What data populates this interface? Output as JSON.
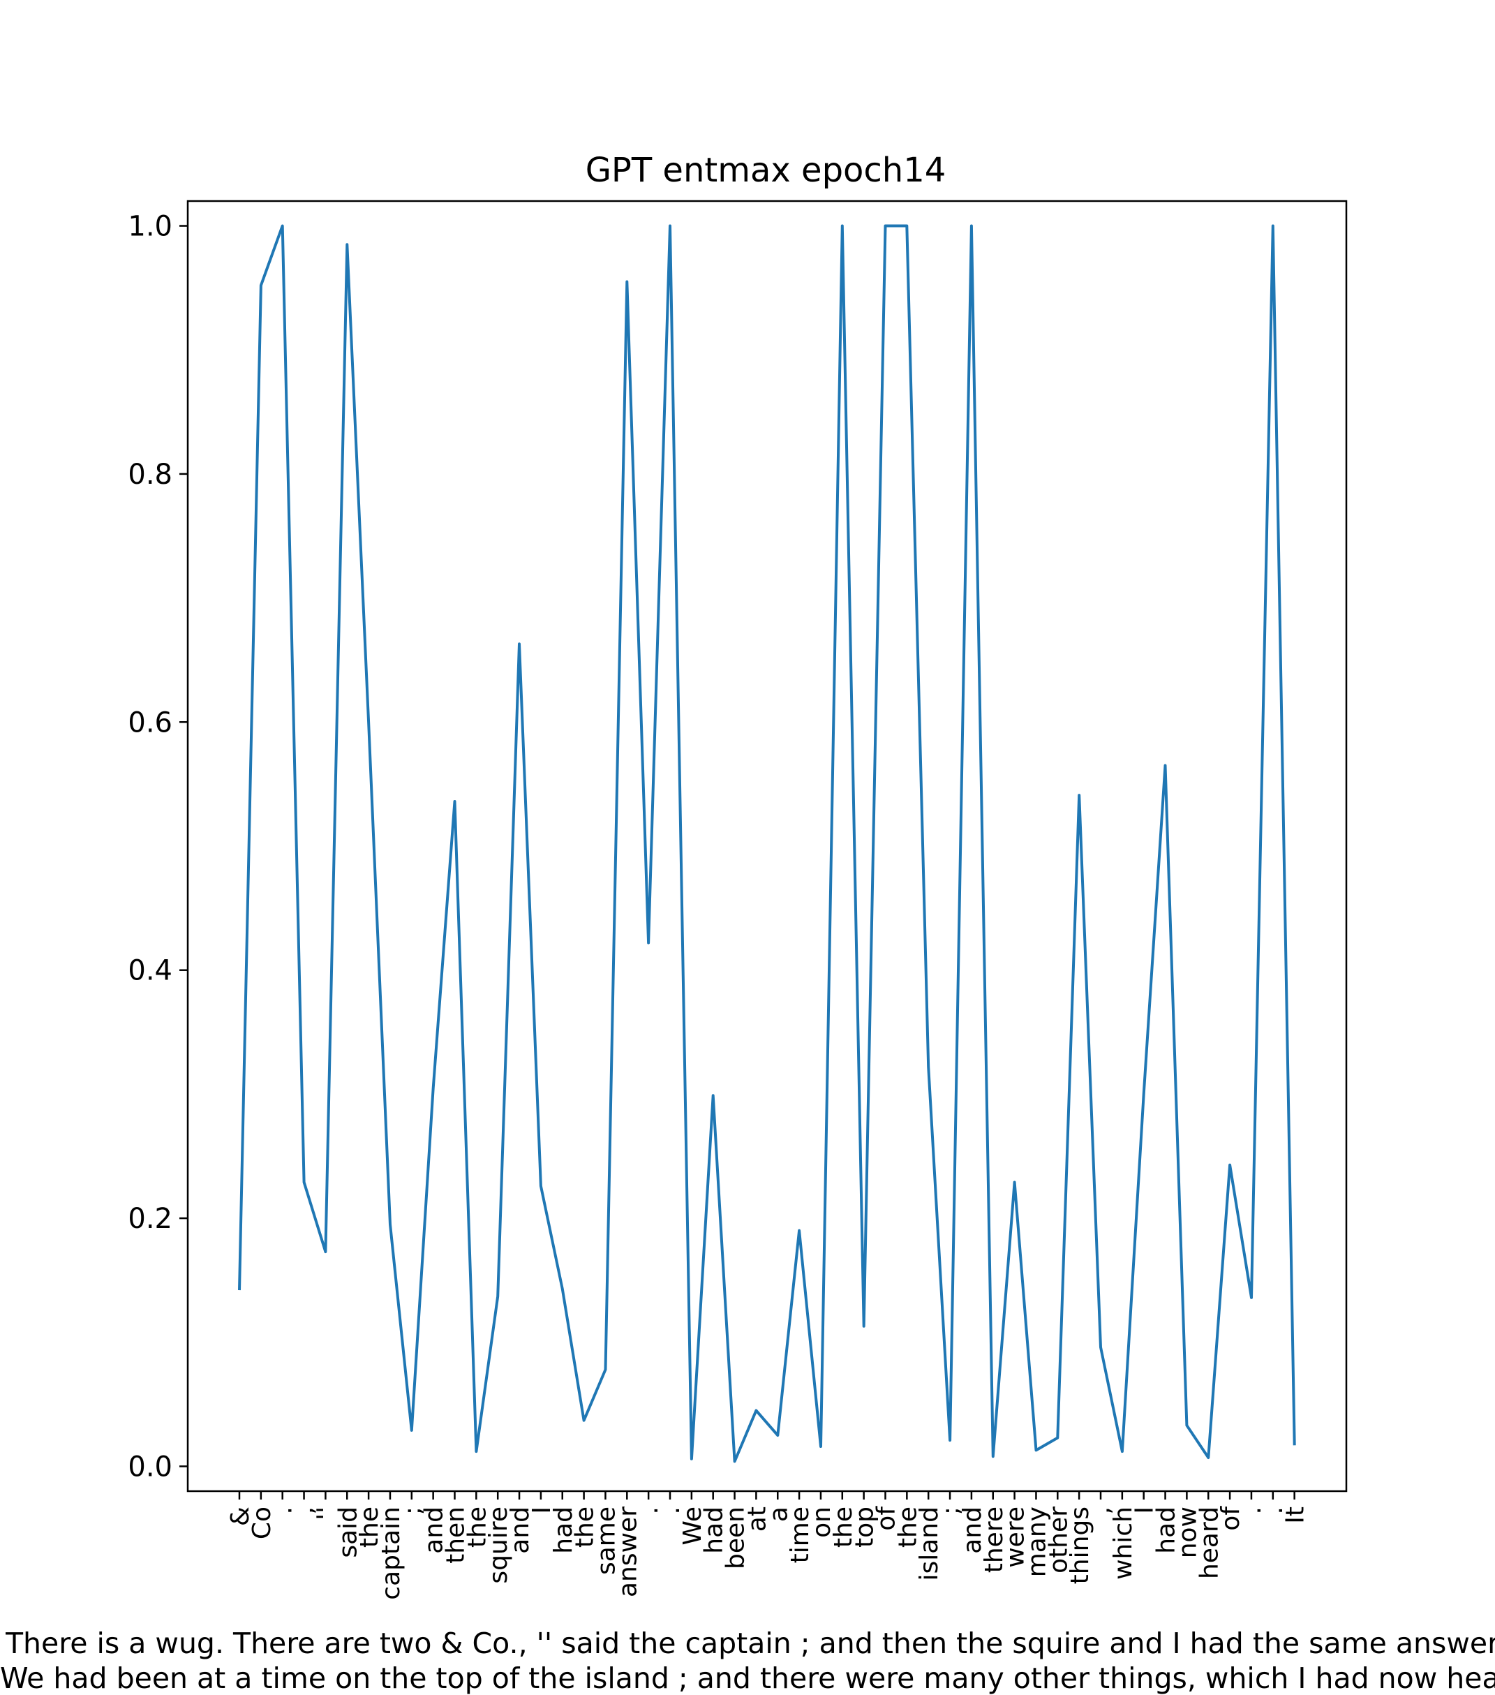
{
  "chart_data": {
    "type": "line",
    "title": "GPT entmax epoch14",
    "xlabel": "",
    "ylabel": "",
    "ylim": [
      -0.02,
      1.02
    ],
    "yticks": [
      0.0,
      0.2,
      0.4,
      0.6,
      0.8,
      1.0
    ],
    "ytick_labels": [
      "0.0",
      "0.2",
      "0.4",
      "0.6",
      "0.8",
      "1.0"
    ],
    "grid": false,
    "line_color": "#1f77b4",
    "x": [
      "&",
      "Co",
      ".",
      ",",
      "''",
      "said",
      "the",
      "captain",
      ";",
      "and",
      "then",
      "the",
      "squire",
      "and",
      "I",
      "had",
      "the",
      "same",
      "answer",
      ".",
      ".",
      "We",
      "had",
      "been",
      "at",
      "a",
      "time",
      "on",
      "the",
      "top",
      "of",
      "the",
      "island",
      ";",
      "and",
      "there",
      "were",
      "many",
      "other",
      "things",
      ",",
      "which",
      "I",
      "had",
      "now",
      "heard",
      "of",
      ".",
      ".",
      "It"
    ],
    "values": [
      0.142,
      0.952,
      1.0,
      0.229,
      0.173,
      0.985,
      0.6,
      0.195,
      0.029,
      0.305,
      0.536,
      0.012,
      0.137,
      0.663,
      0.226,
      0.143,
      0.037,
      0.078,
      0.955,
      0.422,
      1.0,
      0.006,
      0.299,
      0.004,
      0.045,
      0.025,
      0.19,
      0.016,
      1.0,
      0.113,
      1.0,
      1.0,
      0.322,
      0.021,
      1.0,
      0.008,
      0.229,
      0.013,
      0.023,
      0.541,
      0.096,
      0.012,
      0.3,
      0.565,
      0.033,
      0.007,
      0.243,
      0.136,
      1.0,
      0.017
    ]
  },
  "caption": {
    "line1": "There is a wug. There are two & Co., '' said the captain ; and then the squire and I had the same answer.",
    "line2": "We had been at a time on the top of the island ; and there were many other things, which I had now heard of."
  }
}
